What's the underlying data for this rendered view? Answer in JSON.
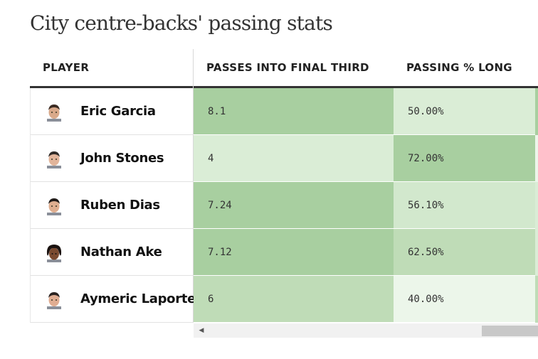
{
  "title": "City centre-backs' passing stats",
  "columns": [
    "PLAYER",
    "PASSES INTO FINAL THIRD",
    "PASSING % LONG"
  ],
  "rows": [
    {
      "player": "Eric Garcia",
      "passes_final_third": "8.1",
      "passing_long": "50.00%"
    },
    {
      "player": "John Stones",
      "passes_final_third": "4",
      "passing_long": "72.00%"
    },
    {
      "player": "Ruben Dias",
      "passes_final_third": "7.24",
      "passing_long": "56.10%"
    },
    {
      "player": "Nathan Ake",
      "passes_final_third": "7.12",
      "passing_long": "62.50%"
    },
    {
      "player": "Aymeric Laporte",
      "passes_final_third": "6",
      "passing_long": "40.00%"
    }
  ],
  "colors": {
    "heat_strong": "#a8cfa0",
    "heat_medium": "#bfdcb7",
    "heat_light": "#daedd6",
    "heat_lightest": "#ecf6ea"
  },
  "icons": {
    "scroll_left": "triangle-left-icon",
    "avatar": "player-headshot-icon"
  }
}
